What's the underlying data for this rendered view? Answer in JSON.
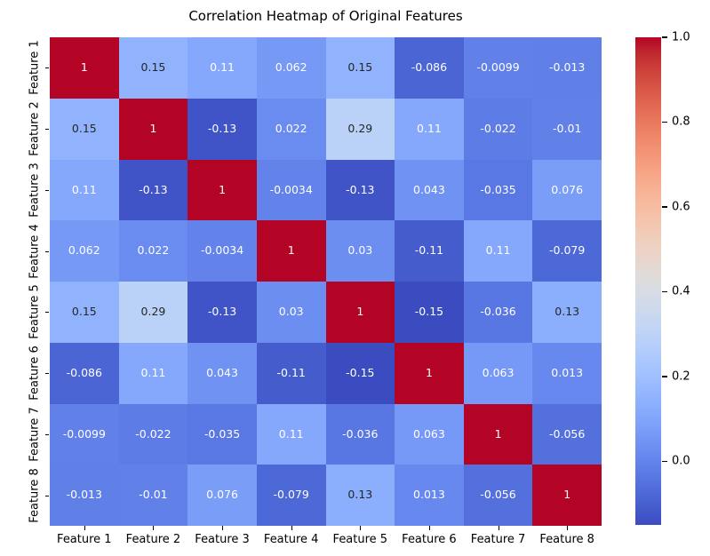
{
  "chart_data": {
    "type": "heatmap",
    "title": "Correlation Heatmap of Original Features",
    "x_labels": [
      "Feature 1",
      "Feature 2",
      "Feature 3",
      "Feature 4",
      "Feature 5",
      "Feature 6",
      "Feature 7",
      "Feature 8"
    ],
    "y_labels": [
      "Feature 1",
      "Feature 2",
      "Feature 3",
      "Feature 4",
      "Feature 5",
      "Feature 6",
      "Feature 7",
      "Feature 8"
    ],
    "values": [
      [
        1,
        0.15,
        0.11,
        0.062,
        0.15,
        -0.086,
        -0.0099,
        -0.013
      ],
      [
        0.15,
        1,
        -0.13,
        0.022,
        0.29,
        0.11,
        -0.022,
        -0.01
      ],
      [
        0.11,
        -0.13,
        1,
        -0.0034,
        -0.13,
        0.043,
        -0.035,
        0.076
      ],
      [
        0.062,
        0.022,
        -0.0034,
        1,
        0.03,
        -0.11,
        0.11,
        -0.079
      ],
      [
        0.15,
        0.29,
        -0.13,
        0.03,
        1,
        -0.15,
        -0.036,
        0.13
      ],
      [
        -0.086,
        0.11,
        0.043,
        -0.11,
        -0.15,
        1,
        0.063,
        0.013
      ],
      [
        -0.0099,
        -0.022,
        -0.035,
        0.11,
        -0.036,
        0.063,
        1,
        -0.056
      ],
      [
        -0.013,
        -0.01,
        0.076,
        -0.079,
        0.13,
        0.013,
        -0.056,
        1
      ]
    ],
    "cell_labels": [
      [
        "1",
        "0.15",
        "0.11",
        "0.062",
        "0.15",
        "-0.086",
        "-0.0099",
        "-0.013"
      ],
      [
        "0.15",
        "1",
        "-0.13",
        "0.022",
        "0.29",
        "0.11",
        "-0.022",
        "-0.01"
      ],
      [
        "0.11",
        "-0.13",
        "1",
        "-0.0034",
        "-0.13",
        "0.043",
        "-0.035",
        "0.076"
      ],
      [
        "0.062",
        "0.022",
        "-0.0034",
        "1",
        "0.03",
        "-0.11",
        "0.11",
        "-0.079"
      ],
      [
        "0.15",
        "0.29",
        "-0.13",
        "0.03",
        "1",
        "-0.15",
        "-0.036",
        "0.13"
      ],
      [
        "-0.086",
        "0.11",
        "0.043",
        "-0.11",
        "-0.15",
        "1",
        "0.063",
        "0.013"
      ],
      [
        "-0.0099",
        "-0.022",
        "-0.035",
        "0.11",
        "-0.036",
        "0.063",
        "1",
        "-0.056"
      ],
      [
        "-0.013",
        "-0.01",
        "0.076",
        "-0.079",
        "0.13",
        "0.013",
        "-0.056",
        "1"
      ]
    ],
    "vmin": -0.15,
    "vmax": 1.0,
    "colormap": "coolwarm",
    "colormap_stops": [
      "#3b4cc0",
      "#445acc",
      "#4d68d7",
      "#5775e1",
      "#6282ea",
      "#6c8ef1",
      "#779af7",
      "#82a5fb",
      "#8db0fe",
      "#98b9ff",
      "#a3c2ff",
      "#aec9fd",
      "#b8d0f9",
      "#c2d5f4",
      "#ccd9ee",
      "#d5dbe6",
      "#dddddd",
      "#e5d8d1",
      "#ecd3c5",
      "#f1ccb9",
      "#f5c4ad",
      "#f7bba0",
      "#f7b194",
      "#f7a687",
      "#f49a7b",
      "#f18d6f",
      "#ec7f63",
      "#e57058",
      "#de604d",
      "#d55042",
      "#cb3e38",
      "#c0282f",
      "#b40426"
    ],
    "annot_text_dark": "#262626",
    "annot_text_light": "#ffffff",
    "background": "#ffffff",
    "grid": false,
    "annotated": true,
    "colorbar": {
      "position": "right",
      "tick_labels": [
        "1.0",
        "0.8",
        "0.6",
        "0.4",
        "0.2",
        "0.0"
      ],
      "tick_values": [
        1.0,
        0.8,
        0.6,
        0.4,
        0.2,
        0.0
      ]
    }
  }
}
